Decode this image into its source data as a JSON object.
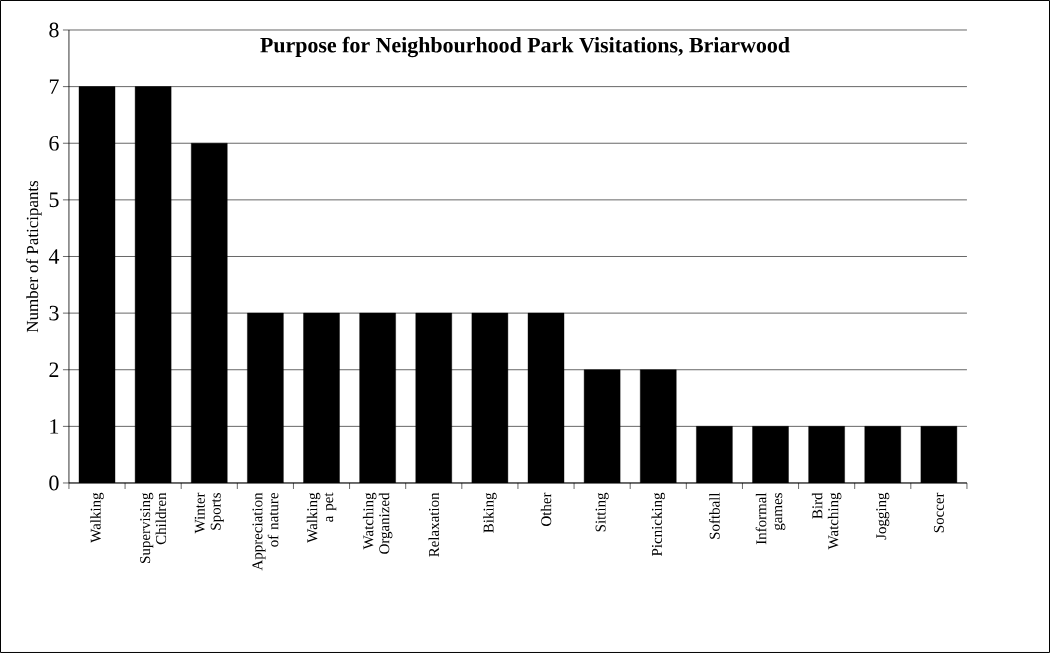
{
  "chart_data": {
    "type": "bar",
    "title": "Purpose for Neighbourhood Park Visitations, Briarwood",
    "ylabel": "Number of Paticipants",
    "categories": [
      "Walking",
      "Supervising Children",
      "Winter Sports",
      "Appreciation of nature",
      "Walking a pet",
      "Watching Organized",
      "Relaxation",
      "Biking",
      "Other",
      "Sitting",
      "Picnicking",
      "Softball",
      "Informal games",
      "Bird Watching",
      "Jogging",
      "Soccer"
    ],
    "values": [
      7,
      7,
      6,
      3,
      3,
      3,
      3,
      3,
      3,
      2,
      2,
      1,
      1,
      1,
      1,
      1
    ],
    "color": "#000000",
    "ylim": [
      0,
      8
    ],
    "yticks": [
      0,
      1,
      2,
      3,
      4,
      5,
      6,
      7,
      8
    ],
    "grid": "y"
  }
}
